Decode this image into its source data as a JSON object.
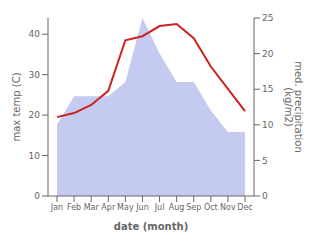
{
  "chart_data": {
    "type": "line",
    "xlabel": "date (month)",
    "ylabel": "max temp (C)",
    "y2label": "med. precipitation\n(kg/m2)",
    "categories": [
      "Jan",
      "Feb",
      "Mar",
      "Apr",
      "May",
      "Jun",
      "Jul",
      "Aug",
      "Sep",
      "Oct",
      "Nov",
      "Dec"
    ],
    "series": [
      {
        "type": "area",
        "axis": "y2",
        "color": "#c5caf0",
        "values": [
          10,
          14,
          14,
          14,
          16,
          25,
          20,
          16,
          16,
          12,
          9,
          9
        ]
      },
      {
        "type": "line",
        "color": "#cc2222",
        "values": [
          19.5,
          20.5,
          22.5,
          26,
          38.5,
          39.5,
          42,
          42.5,
          39,
          32,
          26.5,
          21
        ]
      }
    ],
    "ylim": [
      0,
      44
    ],
    "yticks": [
      0,
      10,
      20,
      30,
      40
    ],
    "y2lim": [
      0,
      25
    ],
    "y2ticks": [
      0,
      5,
      10,
      15,
      20,
      25
    ],
    "grid": false
  }
}
